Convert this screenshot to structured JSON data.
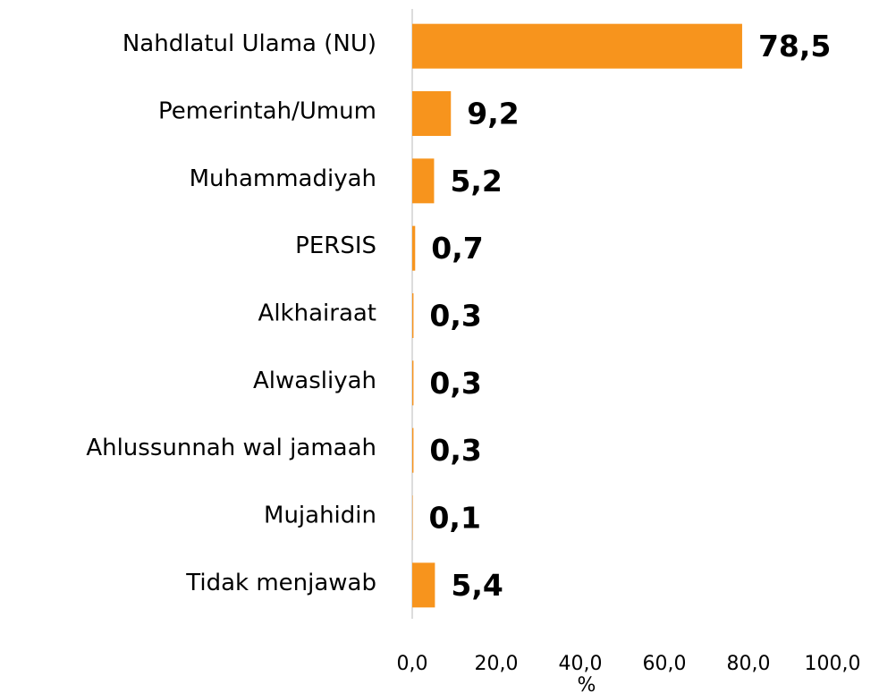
{
  "chart_data": {
    "type": "bar",
    "orientation": "horizontal",
    "categories": [
      "Nahdlatul Ulama (NU)",
      "Pemerintah/Umum",
      "Muhammadiyah",
      "PERSIS",
      "Alkhairaat",
      "Alwasliyah",
      "Ahlussunnah wal jamaah",
      "Mujahidin",
      "Tidak menjawab"
    ],
    "values": [
      78.5,
      9.2,
      5.2,
      0.7,
      0.3,
      0.3,
      0.3,
      0.1,
      5.4
    ],
    "value_labels": [
      "78,5",
      "9,2",
      "5,2",
      "0,7",
      "0,3",
      "0,3",
      "0,3",
      "0,1",
      "5,4"
    ],
    "color": "#f7941d",
    "xlabel": "%",
    "xlim": [
      0,
      100
    ],
    "xticks": [
      {
        "value": 0,
        "label": "0,0"
      },
      {
        "value": 20,
        "label": "20,0"
      },
      {
        "value": 40,
        "label": "40,0"
      },
      {
        "value": 60,
        "label": "60,0"
      },
      {
        "value": 80,
        "label": "80,0"
      },
      {
        "value": 100,
        "label": "100,0"
      }
    ],
    "grid": false
  }
}
